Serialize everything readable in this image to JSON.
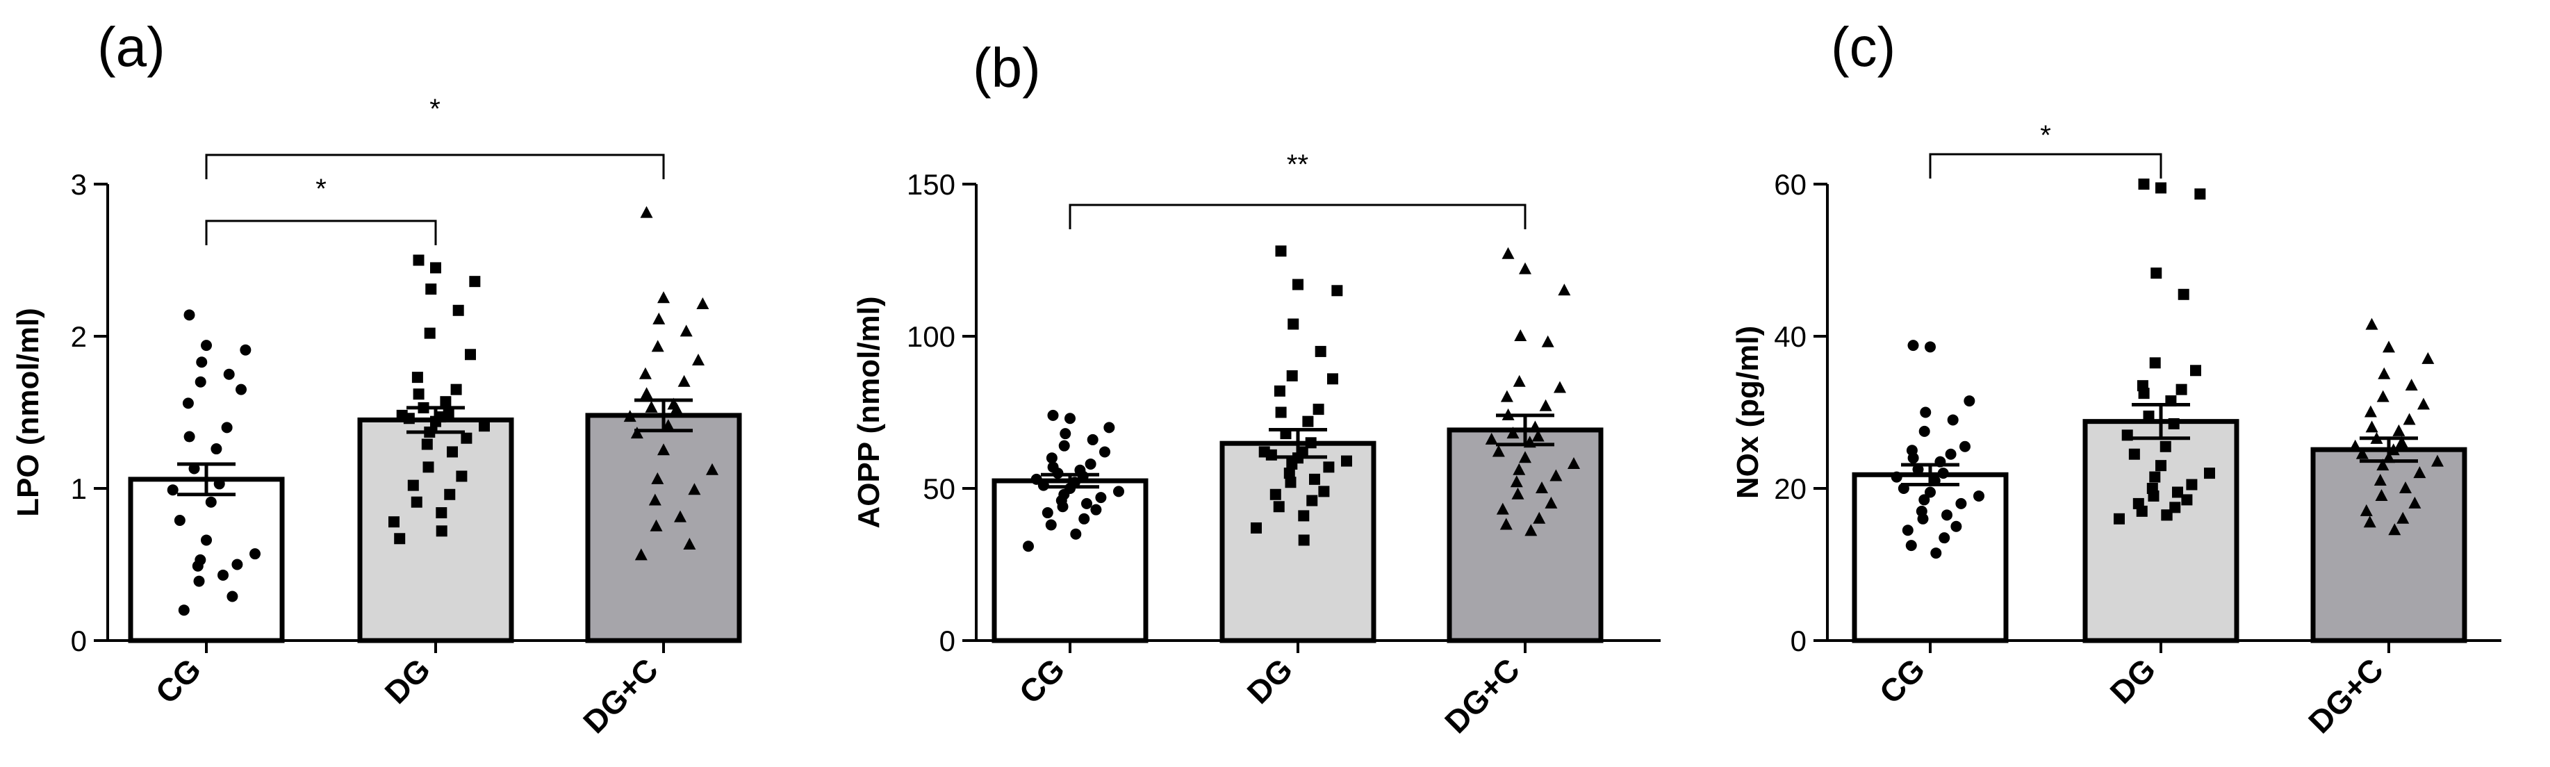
{
  "chart_data": [
    {
      "type": "bar",
      "panel": "(a)",
      "ylabel": "LPO (nmol/ml)",
      "ylim": [
        0,
        3
      ],
      "yticks": [
        0,
        1,
        2,
        3
      ],
      "categories": [
        "CG",
        "DG",
        "DG+C"
      ],
      "bar_colors": [
        "#ffffff",
        "#d6d6d6",
        "#a6a5aa"
      ],
      "marker_shapes": [
        "circle",
        "square",
        "triangle"
      ],
      "means": [
        1.06,
        1.45,
        1.48
      ],
      "sem": [
        0.1,
        0.08,
        0.1
      ],
      "points": [
        [
          2.14,
          1.94,
          1.91,
          1.83,
          1.75,
          1.7,
          1.65,
          1.56,
          1.4,
          1.34,
          1.26,
          1.13,
          1.03,
          0.99,
          0.91,
          0.79,
          0.66,
          0.57,
          0.53,
          0.5,
          0.49,
          0.43,
          0.39,
          0.29,
          0.2
        ],
        [
          2.5,
          2.45,
          2.36,
          2.31,
          2.17,
          2.02,
          1.88,
          1.73,
          1.65,
          1.62,
          1.57,
          1.53,
          1.5,
          1.48,
          1.47,
          1.46,
          1.44,
          1.41,
          1.37,
          1.33,
          1.29,
          1.24,
          1.14,
          1.08,
          1.02,
          0.96,
          0.91,
          0.84,
          0.78,
          0.72,
          0.67
        ],
        [
          2.81,
          2.25,
          2.21,
          2.11,
          2.03,
          1.93,
          1.84,
          1.75,
          1.7,
          1.62,
          1.55,
          1.53,
          1.52,
          1.47,
          1.41,
          1.36,
          1.25,
          1.12,
          1.06,
          0.99,
          0.92,
          0.81,
          0.75,
          0.63,
          0.56
        ]
      ],
      "comparisons": [
        {
          "from": "CG",
          "to": "DG",
          "label": "*"
        },
        {
          "from": "CG",
          "to": "DG+C",
          "label": "*"
        }
      ]
    },
    {
      "type": "bar",
      "panel": "(b)",
      "ylabel": "AOPP (nmol/ml)",
      "ylim": [
        0,
        150
      ],
      "yticks": [
        0,
        50,
        100,
        150
      ],
      "categories": [
        "CG",
        "DG",
        "DG+C"
      ],
      "bar_colors": [
        "#ffffff",
        "#d6d6d6",
        "#a6a5aa"
      ],
      "marker_shapes": [
        "circle",
        "square",
        "triangle"
      ],
      "means": [
        52.5,
        64.8,
        69.2
      ],
      "sem": [
        2.0,
        4.5,
        4.8
      ],
      "points": [
        [
          74,
          73,
          70,
          68,
          66,
          64,
          62,
          60,
          58,
          57,
          56,
          55,
          54,
          53,
          52,
          51,
          50,
          49,
          48,
          47,
          46,
          45,
          44,
          43,
          42,
          40,
          38,
          35,
          31
        ],
        [
          128,
          117,
          115,
          104,
          95,
          87,
          86,
          82,
          76,
          75,
          72,
          68,
          65,
          62,
          62,
          61,
          60,
          59,
          58,
          57,
          55,
          53,
          52,
          49,
          48,
          46,
          44,
          41,
          37,
          33
        ],
        [
          127,
          122,
          115,
          100,
          98,
          85,
          83,
          80,
          77,
          74,
          70,
          68,
          67,
          66,
          65,
          62,
          60,
          58,
          56,
          54,
          52,
          50,
          48,
          45,
          43,
          40,
          38,
          36
        ]
      ],
      "comparisons": [
        {
          "from": "CG",
          "to": "DG+C",
          "label": "**"
        }
      ]
    },
    {
      "type": "bar",
      "panel": "(c)",
      "ylabel": "NOx (pg/ml)",
      "ylim": [
        0,
        60
      ],
      "yticks": [
        0,
        20,
        40,
        60
      ],
      "categories": [
        "CG",
        "DG",
        "DG+C"
      ],
      "bar_colors": [
        "#ffffff",
        "#d6d6d6",
        "#a6a5aa"
      ],
      "marker_shapes": [
        "circle",
        "square",
        "triangle"
      ],
      "means": [
        21.8,
        28.8,
        25.1
      ],
      "sem": [
        1.3,
        2.2,
        1.5
      ],
      "points": [
        [
          38.8,
          38.6,
          31.5,
          30.0,
          29.0,
          27.5,
          25.5,
          25.0,
          24.5,
          24.0,
          23.5,
          22.5,
          22.0,
          21.5,
          21.0,
          20.0,
          19.5,
          19.0,
          18.5,
          18.0,
          17.0,
          16.5,
          16.0,
          15.0,
          14.5,
          13.5,
          12.5,
          11.5
        ],
        [
          60.0,
          59.5,
          58.7,
          48.3,
          45.5,
          36.5,
          35.5,
          33.5,
          33.0,
          32.5,
          31.5,
          29.5,
          28.5,
          27.0,
          25.5,
          24.5,
          23.0,
          22.0,
          21.5,
          20.5,
          20.0,
          19.5,
          19.0,
          18.5,
          18.0,
          17.5,
          17.0,
          16.5,
          16.0,
          16.5
        ],
        [
          41.5,
          38.5,
          37.0,
          35.0,
          33.5,
          32.0,
          31.0,
          30.0,
          29.0,
          28.0,
          27.5,
          26.5,
          26.0,
          25.5,
          25.0,
          24.5,
          24.0,
          23.5,
          23.0,
          22.0,
          21.0,
          20.0,
          19.0,
          18.0,
          17.0,
          16.0,
          15.5,
          14.5
        ]
      ],
      "comparisons": [
        {
          "from": "CG",
          "to": "DG",
          "label": "*"
        }
      ]
    }
  ]
}
